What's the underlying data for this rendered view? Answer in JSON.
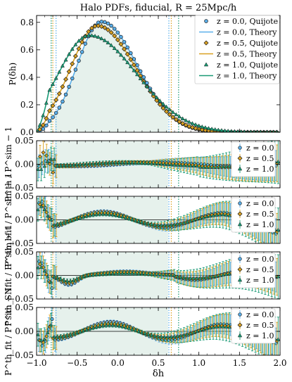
{
  "colors": {
    "z0": "#5aafea",
    "z05": "#d9a021",
    "z1": "#1a9a75",
    "shade": "#e6f1ec",
    "axis": "#000000"
  },
  "chart_data": [
    {
      "type": "line",
      "panel": "main",
      "title": "Halo PDFs, fiducial, R = 25Mpc/h",
      "ylabel": "P(δh)",
      "xlim": [
        -1.0,
        2.0
      ],
      "ylim": [
        0.0,
        0.85
      ],
      "yticks": [
        "0.0",
        "0.2",
        "0.4",
        "0.6",
        "0.8"
      ],
      "shade_range": [
        -0.78,
        0.62
      ],
      "vlines": [
        {
          "series": "z=1.0",
          "x": [
            -0.82,
            0.75
          ]
        },
        {
          "series": "z=0.5",
          "x": [
            -0.8,
            0.66
          ]
        },
        {
          "series": "z=0.0",
          "x": [
            -0.76,
            0.63
          ]
        }
      ],
      "legend": {
        "placement": "top-right",
        "entries": [
          "z = 0.0, Quijote",
          "z = 0.0, Theory",
          "z = 0.5, Quijote",
          "z = 0.5, Theory",
          "z = 1.0, Quijote",
          "z = 1.0, Theory"
        ]
      },
      "series": [
        {
          "name": "z=0.0",
          "peak_x": -0.2,
          "peak_y": 0.805,
          "sigma_left": 0.3,
          "sigma_right": 0.44
        },
        {
          "name": "z=0.5",
          "peak_x": -0.25,
          "peak_y": 0.775,
          "sigma_left": 0.33,
          "sigma_right": 0.47
        },
        {
          "name": "z=1.0",
          "peak_x": -0.35,
          "peak_y": 0.705,
          "sigma_left": 0.38,
          "sigma_right": 0.58
        }
      ]
    },
    {
      "type": "scatter",
      "panel": "residual",
      "ylabel": "P^th / P^sim − 1",
      "ylim": [
        -0.05,
        0.05
      ],
      "yticks": [
        "−0.05",
        "0.00",
        "0.05"
      ],
      "legend": {
        "placement": "top-right",
        "entries": [
          "z = 0.0",
          "z = 0.5",
          "z = 1.0"
        ]
      },
      "profile": "flat"
    },
    {
      "type": "scatter",
      "panel": "residual",
      "ylabel": "P^th_bfit / P^sim − 1",
      "ylim": [
        -0.05,
        0.05
      ],
      "yticks": [
        "−0.05",
        "0.00",
        "0.05"
      ],
      "legend": {
        "placement": "top-right",
        "entries": [
          "z = 0.0",
          "z = 0.5",
          "z = 1.0"
        ]
      },
      "profile": "wave"
    },
    {
      "type": "scatter",
      "panel": "residual",
      "ylabel": "P^th_SNfit / P^sim − 1",
      "ylim": [
        -0.05,
        0.05
      ],
      "yticks": [
        "−0.05",
        "0.00",
        "0.05"
      ],
      "legend": {
        "placement": "top-right",
        "entries": [
          "z = 0.0",
          "z = 0.5",
          "z = 1.0"
        ]
      },
      "profile": "dip"
    },
    {
      "type": "scatter",
      "panel": "residual",
      "ylabel": "P^th_fit / P^sim − 1",
      "ylim": [
        -0.05,
        0.05
      ],
      "yticks": [
        "−0.05",
        "0.00",
        "0.05"
      ],
      "xlabel": "δh",
      "xticks": [
        "−1.0",
        "−0.5",
        "0.0",
        "0.5",
        "1.0",
        "1.5",
        "2.0"
      ],
      "legend": {
        "placement": "top-right",
        "entries": [
          "z = 0.0",
          "z = 0.5",
          "z = 1.0"
        ]
      },
      "profile": "wave2"
    }
  ]
}
